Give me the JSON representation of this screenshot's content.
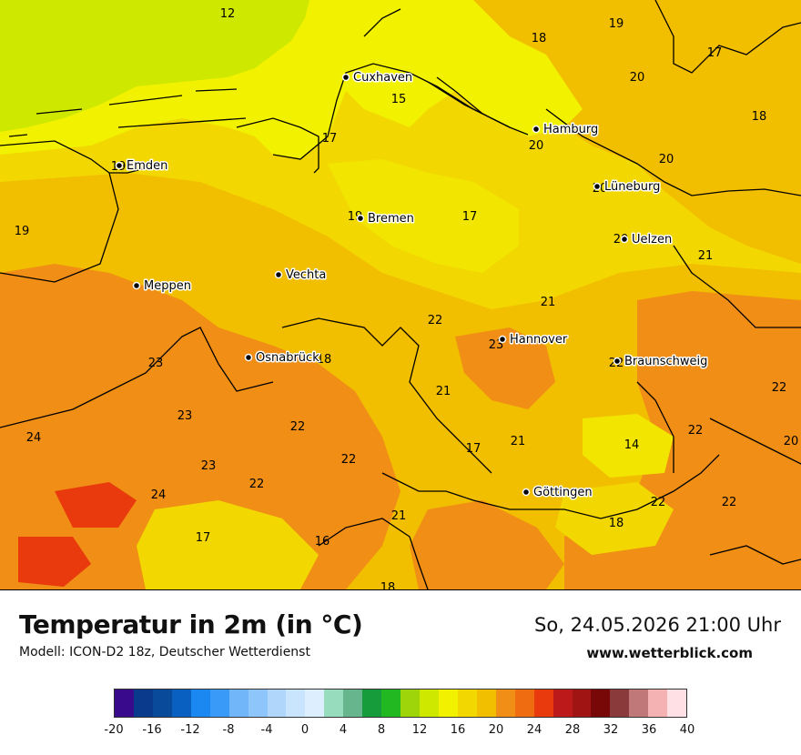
{
  "title": "Temperatur in 2m (in °C)",
  "model_line": "Modell: ICON-D2 18z, Deutscher Wetterdienst",
  "datetime": "So, 24.05.2026 21:00 Uhr",
  "website": "www.wetterblick.com",
  "cities": [
    {
      "name": "Cuxhaven"
    },
    {
      "name": "Hamburg"
    },
    {
      "name": "Emden"
    },
    {
      "name": "Lüneburg"
    },
    {
      "name": "Bremen"
    },
    {
      "name": "Uelzen"
    },
    {
      "name": "Vechta"
    },
    {
      "name": "Meppen"
    },
    {
      "name": "Hannover"
    },
    {
      "name": "Osnabrück"
    },
    {
      "name": "Braunschweig"
    },
    {
      "name": "Göttingen"
    }
  ],
  "values": [
    "12",
    "18",
    "19",
    "17",
    "20",
    "18",
    "15",
    "17",
    "20",
    "20",
    "19",
    "19",
    "20",
    "17",
    "19",
    "21",
    "20",
    "21",
    "22",
    "23",
    "18",
    "22",
    "21",
    "23",
    "22",
    "24",
    "23",
    "22",
    "21",
    "17",
    "14",
    "22",
    "20",
    "23",
    "24",
    "22",
    "22",
    "21",
    "17",
    "18",
    "22",
    "16",
    "22",
    "18"
  ],
  "legend": {
    "colors": [
      "#3a0a8c",
      "#0a3a8c",
      "#0a4a9a",
      "#0a60c0",
      "#1a88f0",
      "#3a9af8",
      "#72b6fa",
      "#8ec6fb",
      "#b0d6fc",
      "#c9e4fd",
      "#ddeefe",
      "#98dcbe",
      "#66b58c",
      "#169c3a",
      "#22b822",
      "#9ed40a",
      "#cfe800",
      "#f2f200",
      "#f2d800",
      "#f2be00",
      "#f08e16",
      "#f06c10",
      "#e83a0c",
      "#bc1a1a",
      "#a01414",
      "#780808",
      "#8a3a3a",
      "#c07878",
      "#f5b2b2",
      "#ffe0e4"
    ],
    "ticks": [
      "-20",
      "-16",
      "-12",
      "-8",
      "-4",
      "0",
      "4",
      "8",
      "12",
      "16",
      "20",
      "24",
      "28",
      "32",
      "36",
      "40"
    ]
  }
}
